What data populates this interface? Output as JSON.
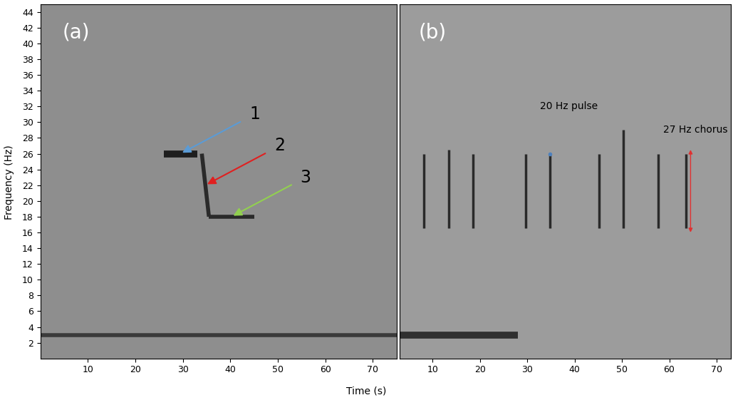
{
  "chart_data": [
    {
      "type": "spectrogram",
      "label": "(a)",
      "xlim": [
        0,
        75
      ],
      "ylim": [
        0,
        45
      ],
      "xticks": [
        10,
        20,
        30,
        40,
        50,
        60,
        70
      ],
      "yticks": [
        2,
        4,
        6,
        8,
        10,
        12,
        14,
        16,
        18,
        20,
        22,
        24,
        26,
        28,
        30,
        32,
        34,
        36,
        38,
        40,
        42,
        44
      ],
      "tick_labels": true,
      "series": [
        {
          "type": "line",
          "x": [
            26,
            33
          ],
          "values": [
            26,
            26
          ],
          "color": "#1e1e1e"
        },
        {
          "type": "line",
          "x": [
            34,
            35.5
          ],
          "values": [
            26,
            18
          ],
          "color": "#2a2a2a"
        },
        {
          "type": "line",
          "x": [
            35.5,
            45
          ],
          "values": [
            18,
            18
          ],
          "color": "#2a2a2a"
        },
        {
          "type": "line",
          "x": [
            0,
            75
          ],
          "values": [
            3,
            3
          ],
          "color": "#3a3a3a"
        }
      ],
      "annotations": [
        {
          "text": "1",
          "color": "#5b9bd5"
        },
        {
          "text": "2",
          "color": "#e02020"
        },
        {
          "text": "3",
          "color": "#92d050"
        }
      ]
    },
    {
      "type": "spectrogram",
      "label": "(b)",
      "xlim": [
        3,
        73
      ],
      "ylim": [
        0,
        45
      ],
      "xticks": [
        10,
        20,
        30,
        40,
        50,
        60,
        70
      ],
      "tick_labels": "x",
      "series": [
        {
          "type": "pulse",
          "x": [
            8.1,
            13.4,
            18.6,
            29.6,
            34.8,
            45.1,
            50.3,
            57.6,
            63.5
          ],
          "low": [
            16.5,
            16.5,
            16.5,
            16.5,
            16.5,
            16.5,
            16.5,
            16.5,
            16.5
          ],
          "high": [
            26,
            26.5,
            26,
            26,
            26,
            26,
            29,
            26,
            26
          ],
          "color": "#2a2a2a"
        },
        {
          "type": "line",
          "x": [
            3,
            28
          ],
          "values": [
            3,
            3
          ],
          "color": "#303030"
        }
      ],
      "annotations": [
        {
          "text": "20 Hz pulse",
          "color": "#4f81bd"
        },
        {
          "text": "27 Hz chorus",
          "color": "#e03030"
        }
      ]
    }
  ],
  "x_label": "Time (s)",
  "y_label": "Frequency (Hz)"
}
